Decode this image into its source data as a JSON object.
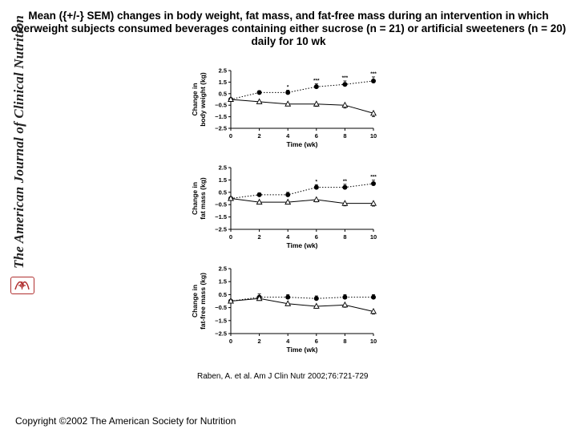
{
  "title": "Mean ({+/-} SEM) changes in body weight, fat mass, and fat-free mass during an intervention in which overweight subjects consumed beverages containing either sucrose (n = 21) or artificial sweeteners (n = 20) daily for 10 wk",
  "journal": "The American Journal of Clinical Nutrition",
  "citation": "Raben, A. et al. Am J Clin Nutr 2002;76:721-729",
  "copyright": "Copyright ©2002 The American Society for Nutrition",
  "colors": {
    "seal": "#b03030",
    "axis": "#000000",
    "line": "#000000"
  },
  "chart_data": [
    {
      "type": "line",
      "ylabel_line1": "Change in",
      "ylabel_line2": "body weight (kg)",
      "xlabel": "Time (wk)",
      "x": [
        0,
        2,
        4,
        6,
        8,
        10
      ],
      "xticks": [
        "0",
        "2",
        "4",
        "6",
        "8",
        "10"
      ],
      "ylim": [
        -2.5,
        2.5
      ],
      "yticks": [
        "2.5",
        "1.5",
        "0.5",
        "−0.5",
        "−1.5",
        "−2.5"
      ],
      "series": [
        {
          "marker": "filled-circle",
          "line": "dotted",
          "values": [
            0,
            0.6,
            0.6,
            1.1,
            1.3,
            1.6
          ],
          "sem": [
            0,
            0.15,
            0.2,
            0.25,
            0.3,
            0.35
          ]
        },
        {
          "marker": "open-triangle",
          "line": "solid",
          "values": [
            0,
            -0.2,
            -0.4,
            -0.4,
            -0.5,
            -1.2
          ],
          "sem": [
            0,
            0.12,
            0.15,
            0.2,
            0.25,
            0.3
          ]
        }
      ],
      "annotations": [
        {
          "x": 4,
          "text": "*"
        },
        {
          "x": 6,
          "text": "***"
        },
        {
          "x": 8,
          "text": "***"
        },
        {
          "x": 10,
          "text": "***"
        }
      ]
    },
    {
      "type": "line",
      "ylabel_line1": "Change in",
      "ylabel_line2": "fat mass (kg)",
      "xlabel": "Time (wk)",
      "x": [
        0,
        2,
        4,
        6,
        8,
        10
      ],
      "xticks": [
        "0",
        "2",
        "4",
        "6",
        "8",
        "10"
      ],
      "ylim": [
        -2.5,
        2.5
      ],
      "yticks": [
        "2.5",
        "1.5",
        "0.5",
        "−0.5",
        "−1.5",
        "−2.5"
      ],
      "series": [
        {
          "marker": "filled-circle",
          "line": "dotted",
          "values": [
            0,
            0.3,
            0.3,
            0.9,
            0.9,
            1.2
          ],
          "sem": [
            0,
            0.15,
            0.2,
            0.22,
            0.25,
            0.28
          ]
        },
        {
          "marker": "open-triangle",
          "line": "solid",
          "values": [
            0,
            -0.3,
            -0.3,
            -0.1,
            -0.4,
            -0.4
          ],
          "sem": [
            0,
            0.12,
            0.15,
            0.18,
            0.2,
            0.22
          ]
        }
      ],
      "annotations": [
        {
          "x": 6,
          "text": "*"
        },
        {
          "x": 8,
          "text": "**"
        },
        {
          "x": 10,
          "text": "***"
        }
      ]
    },
    {
      "type": "line",
      "ylabel_line1": "Change in",
      "ylabel_line2": "fat-free mass (kg)",
      "xlabel": "Time (wk)",
      "x": [
        0,
        2,
        4,
        6,
        8,
        10
      ],
      "xticks": [
        "0",
        "2",
        "4",
        "6",
        "8",
        "10"
      ],
      "ylim": [
        -2.5,
        2.5
      ],
      "yticks": [
        "2.5",
        "1.5",
        "0.5",
        "−0.5",
        "−1.5",
        "−2.5"
      ],
      "series": [
        {
          "marker": "filled-circle",
          "line": "dotted",
          "values": [
            0,
            0.3,
            0.3,
            0.2,
            0.3,
            0.3
          ],
          "sem": [
            0,
            0.25,
            0.2,
            0.2,
            0.2,
            0.2
          ]
        },
        {
          "marker": "open-triangle",
          "line": "solid",
          "values": [
            0,
            0.2,
            -0.2,
            -0.4,
            -0.3,
            -0.8
          ],
          "sem": [
            0,
            0.15,
            0.15,
            0.15,
            0.18,
            0.2
          ]
        }
      ],
      "annotations": []
    }
  ]
}
